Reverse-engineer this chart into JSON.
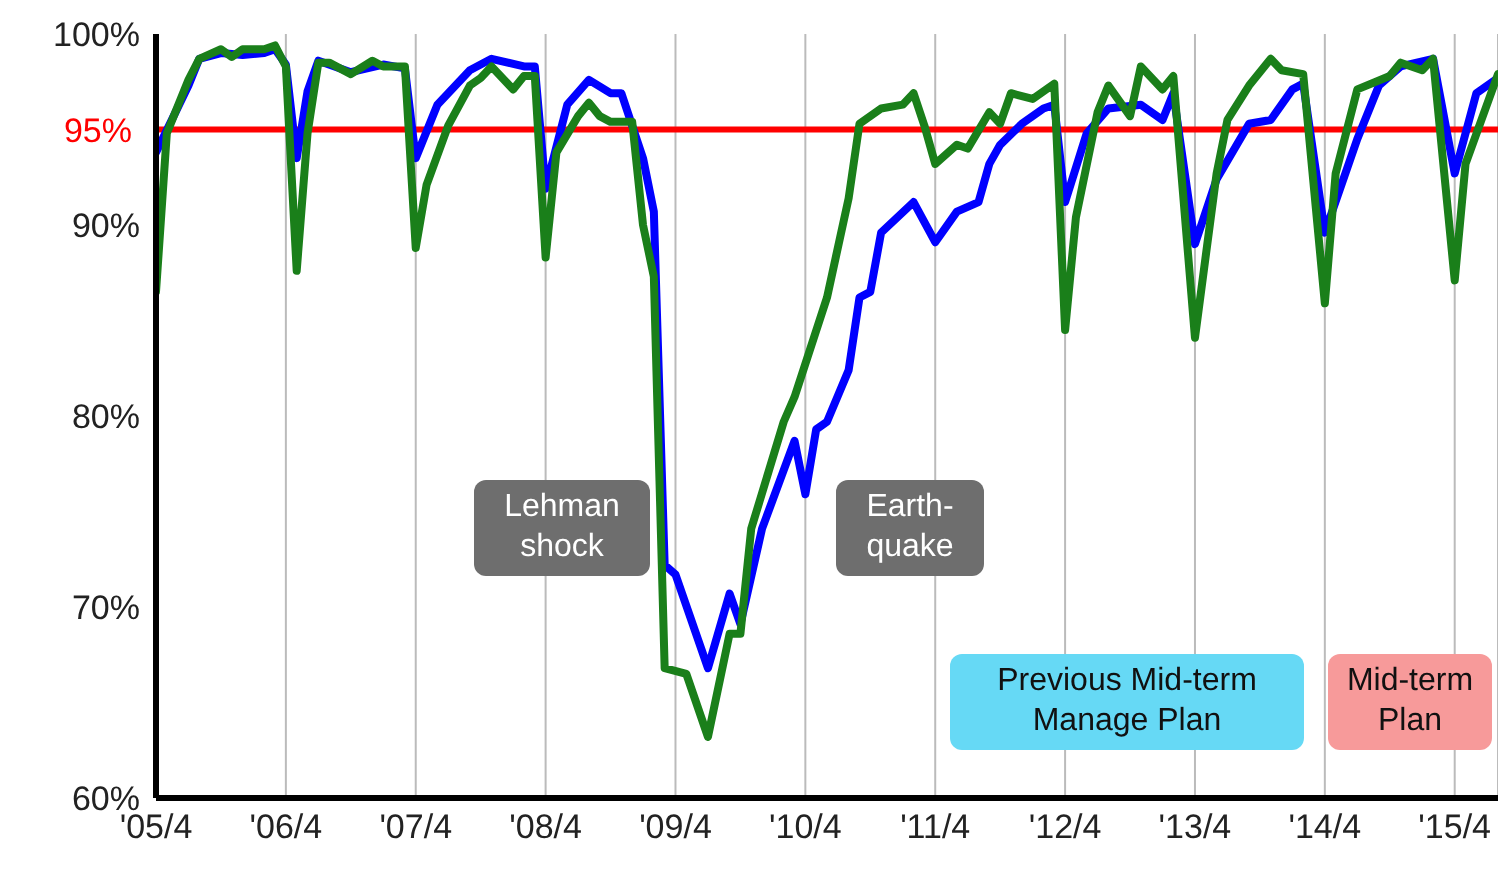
{
  "chart_data": {
    "type": "line",
    "ylim": [
      60,
      100
    ],
    "yticks": [
      {
        "value": 60,
        "label": "60%"
      },
      {
        "value": 70,
        "label": "70%"
      },
      {
        "value": 80,
        "label": "80%"
      },
      {
        "value": 90,
        "label": "90%"
      },
      {
        "value": 100,
        "label": "100%"
      }
    ],
    "xlim": [
      "2005-04",
      "2015-08"
    ],
    "xticks": [
      {
        "value": "2005-04",
        "label": "'05/4"
      },
      {
        "value": "2006-04",
        "label": "'06/4"
      },
      {
        "value": "2007-04",
        "label": "'07/4"
      },
      {
        "value": "2008-04",
        "label": "'08/4"
      },
      {
        "value": "2009-04",
        "label": "'09/4"
      },
      {
        "value": "2010-04",
        "label": "'10/4"
      },
      {
        "value": "2011-04",
        "label": "'11/4"
      },
      {
        "value": "2012-04",
        "label": "'12/4"
      },
      {
        "value": "2013-04",
        "label": "'13/4"
      },
      {
        "value": "2014-04",
        "label": "'14/4"
      },
      {
        "value": "2015-04",
        "label": "'15/4"
      }
    ],
    "grid": "x",
    "line_style": "solid",
    "marker": "none",
    "ref_lines": [
      {
        "axis": "y",
        "value": 95,
        "label": "95%",
        "color": "#ff0000"
      }
    ],
    "annotations": [
      "Lehman shock",
      "Earth-quake",
      "Previous Mid-term Manage Plan",
      "Mid-term Plan"
    ],
    "series": [
      {
        "color": "#0000ff",
        "x": [
          "2005-04",
          "2005-07",
          "2005-08",
          "2005-10",
          "2005-12",
          "2006-02",
          "2006-03",
          "2006-04",
          "2006-05",
          "2006-06",
          "2006-07",
          "2006-10",
          "2007-01",
          "2007-03",
          "2007-04",
          "2007-06",
          "2007-09",
          "2007-11",
          "2008-02",
          "2008-03",
          "2008-04",
          "2008-06",
          "2008-08",
          "2008-10",
          "2008-11",
          "2009-01",
          "2009-02",
          "2009-03",
          "2009-04",
          "2009-07",
          "2009-09",
          "2009-10",
          "2009-12",
          "2010-03",
          "2010-04",
          "2010-05",
          "2010-06",
          "2010-08",
          "2010-09",
          "2010-10",
          "2010-11",
          "2011-02",
          "2011-04",
          "2011-06",
          "2011-08",
          "2011-09",
          "2011-10",
          "2011-12",
          "2012-02",
          "2012-03",
          "2012-04",
          "2012-06",
          "2012-08",
          "2012-11",
          "2013-01",
          "2013-02",
          "2013-04",
          "2013-06",
          "2013-09",
          "2013-11",
          "2014-01",
          "2014-02",
          "2014-04",
          "2014-07",
          "2014-09",
          "2014-11",
          "2015-02",
          "2015-04",
          "2015-06",
          "2015-08"
        ],
        "values": [
          93.8,
          97.3,
          98.7,
          99,
          98.9,
          99,
          99.2,
          98.4,
          93.5,
          97,
          98.6,
          98,
          98.4,
          98.2,
          93.5,
          96.3,
          98.1,
          98.7,
          98.3,
          98.3,
          91.9,
          96.3,
          97.6,
          96.9,
          96.9,
          93.5,
          90.7,
          72.2,
          71.7,
          66.8,
          70.7,
          69.1,
          74.1,
          78.7,
          75.9,
          79.3,
          79.7,
          82.4,
          86.2,
          86.5,
          89.6,
          91.2,
          89.1,
          90.7,
          91.2,
          93.2,
          94.2,
          95.3,
          96.1,
          96.3,
          91.2,
          94.8,
          96.1,
          96.3,
          95.5,
          96.9,
          89,
          92.4,
          95.3,
          95.5,
          97.1,
          97.4,
          89.6,
          94.5,
          97.3,
          98.3,
          98.7,
          92.7,
          96.9,
          97.7
        ]
      },
      {
        "color": "#1a7f1a",
        "x": [
          "2005-04",
          "2005-05",
          "2005-07",
          "2005-08",
          "2005-10",
          "2005-11",
          "2005-12",
          "2006-02",
          "2006-03",
          "2006-04",
          "2006-05",
          "2006-06",
          "2006-07",
          "2006-08",
          "2006-10",
          "2006-12",
          "2007-01",
          "2007-03",
          "2007-04",
          "2007-05",
          "2007-07",
          "2007-09",
          "2007-10",
          "2007-11",
          "2008-01",
          "2008-02",
          "2008-03",
          "2008-04",
          "2008-05",
          "2008-07",
          "2008-08",
          "2008-09",
          "2008-10",
          "2008-12",
          "2009-01",
          "2009-02",
          "2009-03",
          "2009-05",
          "2009-07",
          "2009-09",
          "2009-10",
          "2009-11",
          "2010-02",
          "2010-03",
          "2010-06",
          "2010-08",
          "2010-09",
          "2010-11",
          "2011-01",
          "2011-02",
          "2011-03",
          "2011-04",
          "2011-06",
          "2011-07",
          "2011-09",
          "2011-10",
          "2011-11",
          "2012-01",
          "2012-03",
          "2012-04",
          "2012-05",
          "2012-07",
          "2012-08",
          "2012-10",
          "2012-11",
          "2013-01",
          "2013-02",
          "2013-04",
          "2013-06",
          "2013-07",
          "2013-09",
          "2013-11",
          "2013-12",
          "2014-02",
          "2014-04",
          "2014-05",
          "2014-07",
          "2014-10",
          "2014-11",
          "2015-01",
          "2015-02",
          "2015-04",
          "2015-05",
          "2015-08"
        ],
        "values": [
          86.5,
          94.8,
          97.6,
          98.7,
          99.2,
          98.8,
          99.2,
          99.2,
          99.4,
          98.3,
          87.6,
          94.8,
          98.5,
          98.5,
          97.9,
          98.6,
          98.3,
          98.3,
          88.8,
          92.1,
          95.2,
          97.3,
          97.7,
          98.3,
          97.1,
          97.8,
          97.8,
          88.3,
          93.8,
          95.7,
          96.4,
          95.7,
          95.4,
          95.4,
          90,
          87.3,
          66.8,
          66.5,
          63.2,
          68.6,
          68.6,
          74.1,
          79.7,
          81,
          86.2,
          91.4,
          95.3,
          96.1,
          96.3,
          96.9,
          95.2,
          93.2,
          94.2,
          94,
          95.9,
          95.3,
          96.9,
          96.6,
          97.4,
          84.5,
          90.4,
          95.9,
          97.3,
          95.7,
          98.3,
          97.1,
          97.8,
          84.1,
          92.7,
          95.5,
          97.3,
          98.7,
          98.1,
          97.9,
          85.9,
          92.7,
          97.1,
          97.8,
          98.5,
          98.1,
          98.7,
          87.1,
          93.2,
          97.9
        ]
      }
    ]
  }
}
